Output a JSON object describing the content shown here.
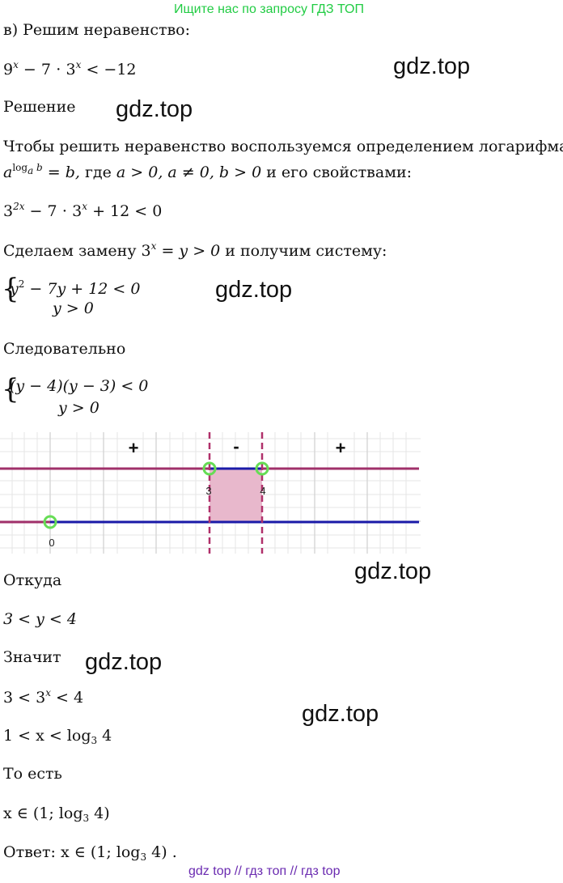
{
  "banner": "Ищите нас по запросу ГДЗ ТОП",
  "watermark": "gdz.top",
  "problem_label": "в) Решим неравенство:",
  "inequality": {
    "base1": "9",
    "exp1": "x",
    "mid": " − 7 ⋅ 3",
    "exp2": "x",
    "rhs": " < −12"
  },
  "solution_label": "Решение",
  "intro_text": "Чтобы решить неравенство воспользуемся определением логарифма",
  "log_def": {
    "a": "a",
    "sup": "log",
    "sup_a": "a",
    "sup_b": " b",
    "rest": " = b,",
    "where": " где ",
    "conds": "a > 0, a ≠ 0, b > 0",
    "tail": " и его свойствами:"
  },
  "step1": {
    "base": "3",
    "exp": "2x",
    "rest1": " − 7 ⋅ 3",
    "exp2": "x",
    "rest2": " + 12 < 0"
  },
  "substitution": {
    "text": "Сделаем замену ",
    "expr": "3",
    "exp": "x",
    "expr2": " = y > 0",
    "tail": "  и получим систему:"
  },
  "system1": {
    "line1_a": "y",
    "line1_exp": "2",
    "line1_b": " − 7y + 12 < 0",
    "line2": "y > 0"
  },
  "consequently": "Следовательно",
  "system2": {
    "line1": "(y − 4)(y − 3) < 0",
    "line2": "y > 0"
  },
  "number_line": {
    "signs": [
      "+",
      "-",
      "+"
    ],
    "tick_labels": [
      "3",
      "4",
      "0"
    ],
    "colors": {
      "line_top": "#a0306a",
      "line_bottom": "#1a1aa8",
      "shade": "#e8b8cc",
      "point": "#66dd55",
      "dash": "#b0306a",
      "grid": "#e6e6e6"
    }
  },
  "whence": "Откуда",
  "result_y": "3 < y < 4",
  "means": "Значит",
  "result_exp": {
    "a": "3 < 3",
    "exp": "x",
    "b": " < 4"
  },
  "result_x": {
    "a": "1 < x < log",
    "sub": "3",
    "b": " 4"
  },
  "that_is": "То есть",
  "interval": {
    "a": "x ∈ (1; log",
    "sub": "3",
    "b": " 4)"
  },
  "answer": {
    "label": "Ответ: ",
    "a": "x ∈ (1; log",
    "sub": "3",
    "b": " 4) ."
  },
  "footer": "gdz top  //  гдз топ  //  гдз top"
}
